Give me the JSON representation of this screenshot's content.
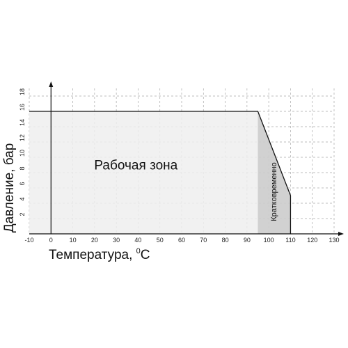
{
  "chart_data": {
    "type": "area",
    "xlabel": "Температура, ",
    "xlabel_unit_sup": "0",
    "xlabel_unit": "С",
    "ylabel": "Давление, бар",
    "xlim": [
      -10,
      130
    ],
    "ylim": [
      0,
      19
    ],
    "x_ticks": [
      -10,
      0,
      10,
      20,
      30,
      40,
      50,
      60,
      70,
      80,
      90,
      100,
      110,
      120,
      130
    ],
    "y_ticks": [
      2,
      4,
      6,
      8,
      10,
      12,
      14,
      16,
      18
    ],
    "grid": true,
    "series": [
      {
        "x": [
          -10,
          95,
          110,
          110
        ],
        "y": [
          16,
          16,
          5,
          0
        ],
        "fill": "#eeeeee"
      }
    ],
    "regions": [
      {
        "label": "Рабочая зона",
        "x_from": -10,
        "x_to": 95,
        "fill": "#eeeeee"
      },
      {
        "label": "Кратковременно",
        "x_from": 95,
        "x_to": 110,
        "fill": "#cccccc"
      }
    ]
  }
}
